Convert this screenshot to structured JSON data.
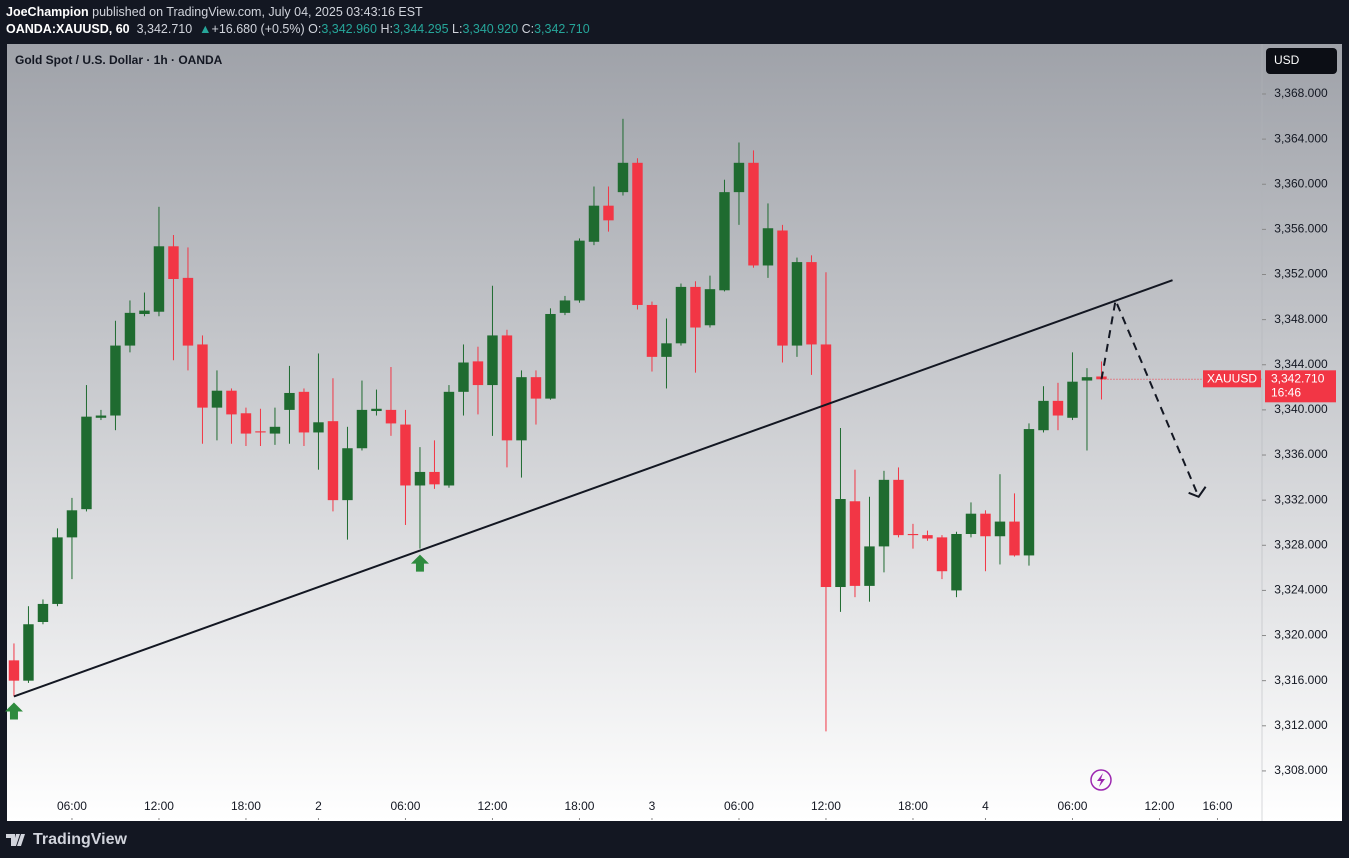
{
  "header": {
    "publisher": "JoeChampion",
    "published": "published on TradingView.com, July 04, 2025 03:43:16 EST",
    "symbol": "OANDA:XAUUSD, 60",
    "last": "3,342.710",
    "change": "+16.680 (+0.5%)",
    "ohlc": [
      {
        "label": "O:",
        "value": "3,342.960"
      },
      {
        "label": "H:",
        "value": "3,344.295"
      },
      {
        "label": "L:",
        "value": "3,340.920"
      },
      {
        "label": "C:",
        "value": "3,342.710"
      }
    ]
  },
  "currency": "USD",
  "price_tag": {
    "symbol": "XAUUSD",
    "price": "3,342.710",
    "countdown": "16:46"
  },
  "footer": {
    "brand": "TradingView"
  },
  "chart_data": {
    "type": "candlestick",
    "title": "Gold Spot / U.S. Dollar · 1h · OANDA",
    "up_color": "#1f6b30",
    "down_color": "#f23645",
    "grid": false,
    "open": [
      3317.8,
      3316,
      3321.2,
      3322.8,
      3328.7,
      3331.2,
      3339.3,
      3339.5,
      3345.7,
      3348.5,
      3348.7,
      3354.5,
      3351.7,
      3345.8,
      3340.2,
      3341.7,
      3339.7,
      3338.1,
      3337.9,
      3340,
      3341.6,
      3338,
      3339,
      3332,
      3336.6,
      3339.9,
      3340,
      3338.7,
      3333.3,
      3334.5,
      3333.3,
      3341.6,
      3344.3,
      3342.2,
      3346.6,
      3337.3,
      3342.9,
      3341,
      3348.6,
      3349.7,
      3354.9,
      3358.1,
      3359.3,
      3361.9,
      3349.3,
      3344.7,
      3345.9,
      3350.9,
      3347.5,
      3350.6,
      3359.3,
      3361.9,
      3352.8,
      3355.9,
      3345.7,
      3353.1,
      3345.8,
      3324.3,
      3331.9,
      3324.4,
      3327.9,
      3333.8,
      3329,
      3328.9,
      3328.7,
      3324,
      3329,
      3330.8,
      3328.8,
      3330.1,
      3327.1,
      3338.2,
      3340.8,
      3339.3,
      3342.6,
      3342.96
    ],
    "high": [
      3319.3,
      3322.6,
      3323.2,
      3329.5,
      3332.2,
      3342.2,
      3340,
      3347.9,
      3349.7,
      3350.4,
      3358,
      3355.5,
      3354.4,
      3346.6,
      3343.5,
      3341.9,
      3340.2,
      3340.1,
      3340.2,
      3343.9,
      3341.9,
      3345,
      3342.8,
      3338.5,
      3342.6,
      3341.8,
      3343.8,
      3340,
      3336.7,
      3337.3,
      3342.2,
      3345.8,
      3345.6,
      3351,
      3347.1,
      3343.5,
      3343.5,
      3349,
      3350.1,
      3355.2,
      3359.8,
      3359.8,
      3365.8,
      3362.3,
      3349.6,
      3348.1,
      3351.2,
      3351.4,
      3351.9,
      3360.4,
      3363.7,
      3363,
      3358.3,
      3356.4,
      3353.5,
      3353.7,
      3352.2,
      3338.4,
      3334.7,
      3332.3,
      3334.6,
      3334.9,
      3329.9,
      3329.3,
      3328.9,
      3329.2,
      3331.8,
      3331.1,
      3334.3,
      3332.6,
      3338.8,
      3342.1,
      3342.4,
      3345.1,
      3343.7,
      3344.295
    ],
    "low": [
      3314.6,
      3315.8,
      3321,
      3322.6,
      3325,
      3331,
      3339.1,
      3338.2,
      3345.1,
      3348.3,
      3348.3,
      3344.4,
      3343.5,
      3337,
      3337.3,
      3337,
      3336.8,
      3336.8,
      3336.9,
      3337,
      3336.8,
      3334.7,
      3331,
      3328.5,
      3336.4,
      3339.5,
      3337.7,
      3329.8,
      3327.7,
      3333,
      3333.1,
      3339.5,
      3339.6,
      3337.7,
      3334.9,
      3334,
      3338.7,
      3340.9,
      3348.4,
      3349.5,
      3354.6,
      3355.8,
      3359,
      3348.9,
      3343.4,
      3341.9,
      3345.7,
      3343.3,
      3347.3,
      3350.5,
      3356.4,
      3352.6,
      3351.7,
      3344.2,
      3344.7,
      3343.1,
      3311.5,
      3322.1,
      3323.4,
      3323,
      3325.6,
      3328.7,
      3327.7,
      3328.4,
      3325,
      3323.4,
      3328.7,
      3325.7,
      3326.3,
      3327,
      3326.2,
      3338,
      3338.2,
      3339.1,
      3336.4,
      3340.92
    ],
    "close": [
      3316,
      3321,
      3322.8,
      3328.7,
      3331.1,
      3339.4,
      3339.5,
      3345.7,
      3348.6,
      3348.8,
      3354.5,
      3351.6,
      3345.7,
      3340.2,
      3341.7,
      3339.6,
      3337.9,
      3338,
      3338.5,
      3341.5,
      3338,
      3338.9,
      3332,
      3336.6,
      3340,
      3340.1,
      3338.8,
      3333.3,
      3334.5,
      3333.4,
      3341.6,
      3344.2,
      3342.2,
      3346.6,
      3337.3,
      3342.9,
      3341,
      3348.5,
      3349.7,
      3355,
      3358.1,
      3356.8,
      3361.9,
      3349.3,
      3344.7,
      3345.9,
      3350.9,
      3347.3,
      3350.7,
      3359.3,
      3361.9,
      3352.8,
      3356.1,
      3345.7,
      3353.1,
      3345.8,
      3324.3,
      3332.1,
      3324.4,
      3327.9,
      3333.8,
      3328.9,
      3328.9,
      3328.6,
      3325.7,
      3329,
      3330.8,
      3328.8,
      3330.1,
      3327.1,
      3338.3,
      3340.8,
      3339.5,
      3342.5,
      3342.9,
      3342.71
    ],
    "xlim": [
      -0.48,
      86.07
    ],
    "xticks": [
      {
        "value": 4,
        "label": "06:00"
      },
      {
        "value": 10,
        "label": "12:00"
      },
      {
        "value": 16,
        "label": "18:00"
      },
      {
        "value": 21,
        "label": "2"
      },
      {
        "value": 27,
        "label": "06:00"
      },
      {
        "value": 33,
        "label": "12:00"
      },
      {
        "value": 39,
        "label": "18:00"
      },
      {
        "value": 44,
        "label": "3"
      },
      {
        "value": 50,
        "label": "06:00"
      },
      {
        "value": 56,
        "label": "12:00"
      },
      {
        "value": 62,
        "label": "18:00"
      },
      {
        "value": 67,
        "label": "4"
      },
      {
        "value": 73,
        "label": "06:00"
      },
      {
        "value": 79,
        "label": "12:00"
      },
      {
        "value": 83,
        "label": "16:00"
      }
    ],
    "ylim": [
      3303.65,
      3372.43
    ],
    "yticks": [
      {
        "value": 3308,
        "label": "3,308.000"
      },
      {
        "value": 3312,
        "label": "3,312.000"
      },
      {
        "value": 3316,
        "label": "3,316.000"
      },
      {
        "value": 3320,
        "label": "3,320.000"
      },
      {
        "value": 3324,
        "label": "3,324.000"
      },
      {
        "value": 3328,
        "label": "3,328.000"
      },
      {
        "value": 3332,
        "label": "3,332.000"
      },
      {
        "value": 3336,
        "label": "3,336.000"
      },
      {
        "value": 3340,
        "label": "3,340.000"
      },
      {
        "value": 3344,
        "label": "3,344.000"
      },
      {
        "value": 3348,
        "label": "3,348.000"
      },
      {
        "value": 3352,
        "label": "3,352.000"
      },
      {
        "value": 3356,
        "label": "3,356.000"
      },
      {
        "value": 3360,
        "label": "3,360.000"
      },
      {
        "value": 3364,
        "label": "3,364.000"
      },
      {
        "value": 3368,
        "label": "3,368.000"
      }
    ],
    "trendline": {
      "x": [
        0,
        79.9
      ],
      "y": [
        3314.6,
        3351.5
      ]
    },
    "projection": {
      "x": [
        75,
        75.97,
        81.7
      ],
      "y": [
        3342.7,
        3349.7,
        3332.3
      ]
    },
    "signals": [
      0,
      28
    ]
  }
}
